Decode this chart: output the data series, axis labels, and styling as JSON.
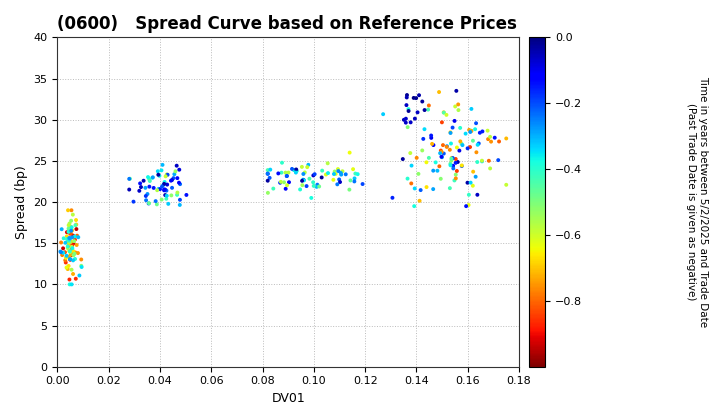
{
  "title": "(0600)   Spread Curve based on Reference Prices",
  "xlabel": "DV01",
  "ylabel": "Spread (bp)",
  "colorbar_label": "Time in years between 5/2/2025 and Trade Date\n(Past Trade Date is given as negative)",
  "colorbar_ticks": [
    0.0,
    -0.2,
    -0.4,
    -0.6,
    -0.8
  ],
  "xlim": [
    0,
    0.18
  ],
  "ylim": [
    0,
    40
  ],
  "xticks": [
    0.0,
    0.02,
    0.04,
    0.06,
    0.08,
    0.1,
    0.12,
    0.14,
    0.16,
    0.18
  ],
  "yticks": [
    0,
    5,
    10,
    15,
    20,
    25,
    30,
    35,
    40
  ],
  "cmap": "jet_r",
  "vmin": -1.0,
  "vmax": 0.0,
  "marker_size": 8,
  "background_color": "#ffffff",
  "grid_color": "#bbbbbb",
  "title_fontsize": 12,
  "label_fontsize": 9,
  "tick_fontsize": 8
}
